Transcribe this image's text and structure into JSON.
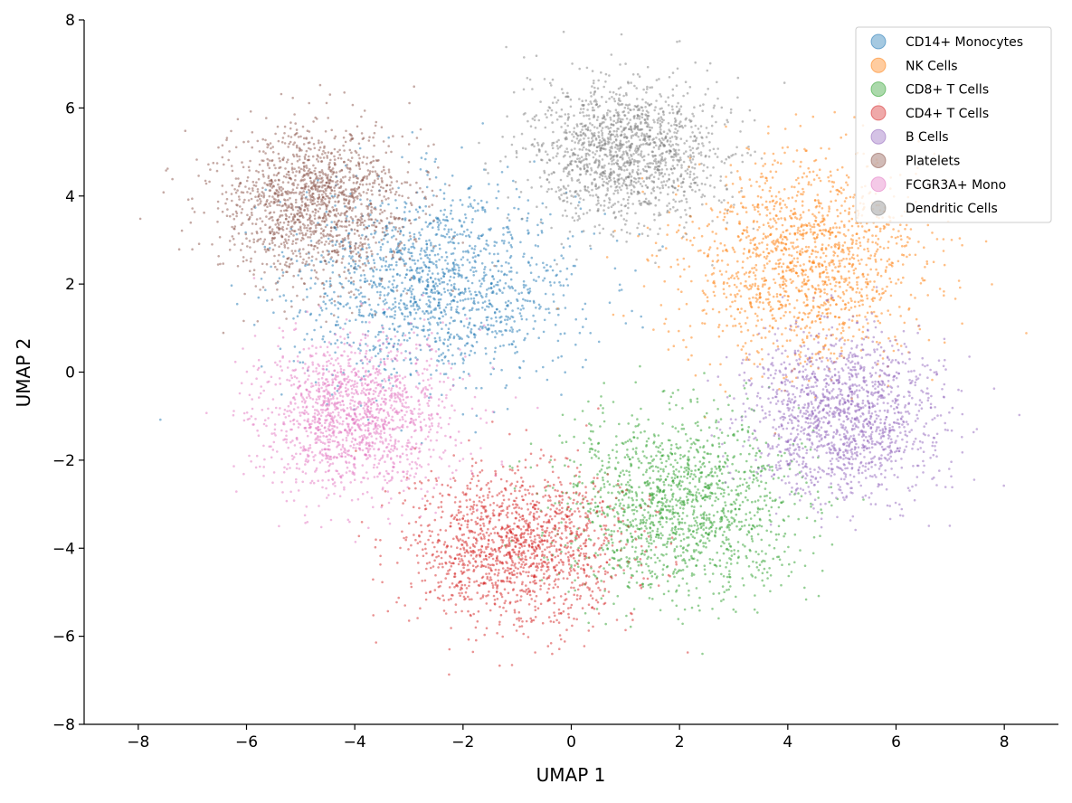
{
  "chart_data": {
    "type": "scatter",
    "title": "",
    "xlabel": "UMAP 1",
    "ylabel": "UMAP 2",
    "xlim": [
      -9,
      9
    ],
    "ylim": [
      -8,
      8
    ],
    "xticks": [
      -8,
      -6,
      -4,
      -2,
      0,
      2,
      4,
      6,
      8
    ],
    "yticks": [
      -8,
      -6,
      -4,
      -2,
      0,
      2,
      4,
      6,
      8
    ],
    "xtick_labels": [
      "−8",
      "−6",
      "−4",
      "−2",
      "0",
      "2",
      "4",
      "6",
      "8"
    ],
    "ytick_labels": [
      "−8",
      "−6",
      "−4",
      "−2",
      "0",
      "2",
      "4",
      "6",
      "8"
    ],
    "grid": false,
    "legend_position": "top-right",
    "series": [
      {
        "name": "CD14+ Monocytes",
        "color": "#1f77b4",
        "n_points": 1500,
        "center": [
          -2.5,
          2.0
        ],
        "spread": [
          1.3,
          1.1
        ]
      },
      {
        "name": "NK Cells",
        "color": "#ff7f0e",
        "n_points": 1500,
        "center": [
          4.3,
          2.5
        ],
        "spread": [
          1.1,
          1.2
        ]
      },
      {
        "name": "CD8+ T Cells",
        "color": "#2ca02c",
        "n_points": 1500,
        "center": [
          2.0,
          -3.0
        ],
        "spread": [
          1.1,
          1.0
        ]
      },
      {
        "name": "CD4+ T Cells",
        "color": "#d62728",
        "n_points": 1500,
        "center": [
          -1.0,
          -4.0
        ],
        "spread": [
          1.0,
          0.9
        ]
      },
      {
        "name": "B Cells",
        "color": "#9467bd",
        "n_points": 1500,
        "center": [
          5.0,
          -1.0
        ],
        "spread": [
          0.9,
          0.9
        ]
      },
      {
        "name": "Platelets",
        "color": "#8c564b",
        "n_points": 1500,
        "center": [
          -4.8,
          3.8
        ],
        "spread": [
          0.9,
          0.9
        ]
      },
      {
        "name": "FCGR3A+ Mono",
        "color": "#e377c2",
        "n_points": 1500,
        "center": [
          -4.0,
          -1.0
        ],
        "spread": [
          0.9,
          0.9
        ]
      },
      {
        "name": "Dendritic Cells",
        "color": "#7f7f7f",
        "n_points": 1500,
        "center": [
          1.0,
          5.0
        ],
        "spread": [
          0.9,
          0.8
        ]
      }
    ]
  }
}
